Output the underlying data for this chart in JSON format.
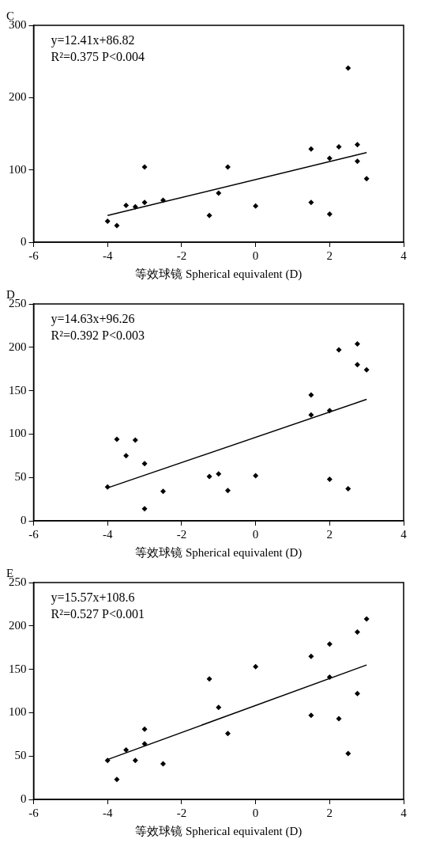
{
  "chart_data": [
    {
      "type": "scatter",
      "title": "C",
      "xlabel": "等效球镜 Spherical equivalent (D)",
      "xlim": [
        -6,
        4
      ],
      "xticks": [
        -6,
        -4,
        -2,
        0,
        2,
        4
      ],
      "ylim": [
        0,
        300
      ],
      "yticks": [
        0,
        100,
        200,
        300
      ],
      "grid": false,
      "marker": "diamond",
      "annotations": [
        "y=12.41x+86.82",
        "R²=0.375 P<0.004"
      ],
      "series": [
        {
          "color": "#000000",
          "x": [
            -4,
            -3.75,
            -3.5,
            -3.25,
            -3,
            -3,
            -2.5,
            -1.25,
            -1,
            -0.75,
            0,
            1.5,
            1.5,
            2,
            2,
            2.25,
            2.5,
            2.75,
            2.75,
            3
          ],
          "values": [
            29,
            23,
            51,
            49,
            55,
            104,
            58,
            37,
            68,
            104,
            50,
            129,
            55,
            116,
            39,
            132,
            241,
            135,
            112,
            88
          ]
        },
        {
          "type": "line",
          "color": "#000000",
          "marker": "none",
          "x": [
            -4,
            3
          ],
          "values": [
            37,
            124
          ]
        }
      ]
    },
    {
      "type": "scatter",
      "title": "D",
      "xlabel": "等效球镜 Spherical equivalent (D)",
      "xlim": [
        -6,
        4
      ],
      "xticks": [
        -6,
        -4,
        -2,
        0,
        2,
        4
      ],
      "ylim": [
        0,
        250
      ],
      "yticks": [
        0,
        50,
        100,
        150,
        200,
        250
      ],
      "grid": false,
      "marker": "diamond",
      "annotations": [
        "y=14.63x+96.26",
        "R²=0.392 P<0.003"
      ],
      "series": [
        {
          "color": "#000000",
          "x": [
            -4,
            -3.75,
            -3.5,
            -3.25,
            -3,
            -3,
            -2.5,
            -1.25,
            -1,
            -0.75,
            0,
            1.5,
            1.5,
            2,
            2,
            2.25,
            2.5,
            2.75,
            2.75,
            3
          ],
          "values": [
            39,
            94,
            75,
            93,
            66,
            14,
            34,
            51,
            54,
            35,
            52,
            145,
            122,
            127,
            48,
            197,
            37,
            204,
            180,
            174
          ]
        },
        {
          "type": "line",
          "color": "#000000",
          "marker": "none",
          "x": [
            -4,
            3
          ],
          "values": [
            38,
            140
          ]
        }
      ]
    },
    {
      "type": "scatter",
      "title": "E",
      "xlabel": "等效球镜 Spherical equivalent (D)",
      "xlim": [
        -6,
        4
      ],
      "xticks": [
        -6,
        -4,
        -2,
        0,
        2,
        4
      ],
      "ylim": [
        0,
        250
      ],
      "yticks": [
        0,
        50,
        100,
        150,
        200,
        250
      ],
      "grid": false,
      "marker": "diamond",
      "annotations": [
        "y=15.57x+108.6",
        "R²=0.527 P<0.001"
      ],
      "series": [
        {
          "color": "#000000",
          "x": [
            -4,
            -3.75,
            -3.5,
            -3.25,
            -3,
            -3,
            -2.5,
            -1.25,
            -1,
            -0.75,
            0,
            1.5,
            1.5,
            2,
            2,
            2.25,
            2.5,
            2.75,
            2.75,
            3
          ],
          "values": [
            45,
            23,
            57,
            45,
            81,
            64,
            41,
            139,
            106,
            76,
            153,
            165,
            97,
            179,
            141,
            93,
            53,
            193,
            122,
            208
          ]
        },
        {
          "type": "line",
          "color": "#000000",
          "marker": "none",
          "x": [
            -4,
            3
          ],
          "values": [
            46,
            155
          ]
        }
      ]
    }
  ]
}
